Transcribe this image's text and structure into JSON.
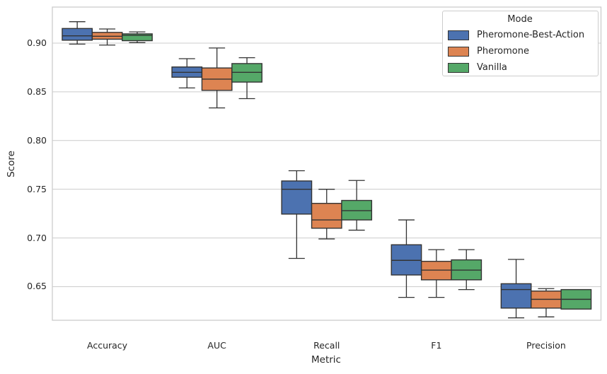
{
  "axes": {
    "ylabel": "Score",
    "xlabel": "Metric",
    "yticks": [
      {
        "value": 0.9,
        "label": "0.90"
      },
      {
        "value": 0.85,
        "label": "0.85"
      },
      {
        "value": 0.8,
        "label": "0.80"
      },
      {
        "value": 0.75,
        "label": "0.75"
      },
      {
        "value": 0.7,
        "label": "0.70"
      },
      {
        "value": 0.65,
        "label": "0.65"
      }
    ],
    "categories": [
      "Accuracy",
      "AUC",
      "Recall",
      "F1",
      "Precision"
    ]
  },
  "legend": {
    "title": "Mode",
    "entries": [
      {
        "label": "Pheromone-Best-Action",
        "color": "#4c72b0"
      },
      {
        "label": "Pheromone",
        "color": "#dd8452"
      },
      {
        "label": "Vanilla",
        "color": "#55a868"
      }
    ]
  },
  "style": {
    "grid_color": "#cccccc",
    "spine_color": "#cccccc",
    "line_color": "#333333",
    "background": "#ffffff"
  },
  "chart_data": {
    "type": "box",
    "title": "",
    "xlabel": "Metric",
    "ylabel": "Score",
    "categories": [
      "Accuracy",
      "AUC",
      "Recall",
      "F1",
      "Precision"
    ],
    "ylim": [
      0.6155,
      0.937
    ],
    "grid": true,
    "legend_position": "upper right",
    "legend_title": "Mode",
    "series": [
      {
        "name": "Pheromone-Best-Action",
        "color": "#4c72b0",
        "boxes": [
          {
            "whislo": 0.899,
            "q1": 0.903,
            "med": 0.9075,
            "q3": 0.915,
            "whishi": 0.922
          },
          {
            "whislo": 0.854,
            "q1": 0.865,
            "med": 0.87,
            "q3": 0.8755,
            "whishi": 0.884
          },
          {
            "whislo": 0.679,
            "q1": 0.7245,
            "med": 0.75,
            "q3": 0.7585,
            "whishi": 0.769
          },
          {
            "whislo": 0.639,
            "q1": 0.662,
            "med": 0.677,
            "q3": 0.693,
            "whishi": 0.7185
          },
          {
            "whislo": 0.618,
            "q1": 0.628,
            "med": 0.647,
            "q3": 0.653,
            "whishi": 0.678
          }
        ]
      },
      {
        "name": "Pheromone",
        "color": "#dd8452",
        "boxes": [
          {
            "whislo": 0.898,
            "q1": 0.904,
            "med": 0.907,
            "q3": 0.911,
            "whishi": 0.9145
          },
          {
            "whislo": 0.8335,
            "q1": 0.8515,
            "med": 0.863,
            "q3": 0.8745,
            "whishi": 0.895
          },
          {
            "whislo": 0.699,
            "q1": 0.71,
            "med": 0.7185,
            "q3": 0.7355,
            "whishi": 0.75
          },
          {
            "whislo": 0.639,
            "q1": 0.657,
            "med": 0.667,
            "q3": 0.676,
            "whishi": 0.688
          },
          {
            "whislo": 0.619,
            "q1": 0.628,
            "med": 0.637,
            "q3": 0.6455,
            "whishi": 0.648
          }
        ]
      },
      {
        "name": "Vanilla",
        "color": "#55a868",
        "boxes": [
          {
            "whislo": 0.9005,
            "q1": 0.9025,
            "med": 0.908,
            "q3": 0.9095,
            "whishi": 0.9115
          },
          {
            "whislo": 0.843,
            "q1": 0.86,
            "med": 0.87,
            "q3": 0.879,
            "whishi": 0.885
          },
          {
            "whislo": 0.708,
            "q1": 0.7185,
            "med": 0.728,
            "q3": 0.7385,
            "whishi": 0.759
          },
          {
            "whislo": 0.647,
            "q1": 0.657,
            "med": 0.667,
            "q3": 0.6775,
            "whishi": 0.688
          },
          {
            "whislo": 0.627,
            "q1": 0.627,
            "med": 0.637,
            "q3": 0.647,
            "whishi": 0.647
          }
        ]
      }
    ]
  }
}
